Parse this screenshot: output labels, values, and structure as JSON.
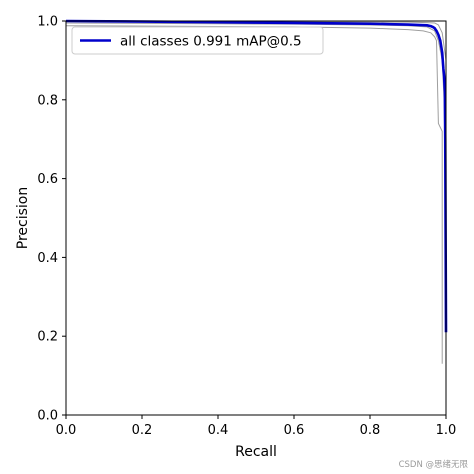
{
  "chart_data": {
    "type": "line",
    "title": "",
    "xlabel": "Recall",
    "ylabel": "Precision",
    "xlim": [
      0.0,
      1.0
    ],
    "ylim": [
      0.0,
      1.0
    ],
    "xticks": [
      "0.0",
      "0.2",
      "0.4",
      "0.6",
      "0.8",
      "1.0"
    ],
    "yticks": [
      "0.0",
      "0.2",
      "0.4",
      "0.6",
      "0.8",
      "1.0"
    ],
    "grid": false,
    "legend_position": "top-left",
    "series": [
      {
        "name": "all classes 0.991 mAP@0.5",
        "color": "#0000cc",
        "emphasis": true,
        "x": [
          0.0,
          0.4,
          0.5,
          0.6,
          0.7,
          0.8,
          0.85,
          0.9,
          0.95,
          0.96,
          0.965,
          0.97,
          0.975,
          0.98,
          0.985,
          0.99,
          0.993,
          0.995,
          0.997,
          0.998,
          0.999,
          1.0
        ],
        "y": [
          1.0,
          0.997,
          0.996,
          0.995,
          0.994,
          0.993,
          0.992,
          0.991,
          0.989,
          0.987,
          0.985,
          0.982,
          0.975,
          0.965,
          0.95,
          0.92,
          0.88,
          0.86,
          0.82,
          0.7,
          0.45,
          0.21
        ]
      },
      {
        "color": "#9e9e9e",
        "x": [
          0.0,
          0.4,
          0.6,
          0.8,
          0.9,
          0.95,
          0.97,
          0.98,
          0.99,
          0.995,
          1.0,
          1.0
        ],
        "y": [
          0.995,
          0.993,
          0.992,
          0.99,
          0.988,
          0.985,
          0.975,
          0.95,
          0.9,
          0.8,
          0.5,
          0.13
        ]
      },
      {
        "color": "#9e9e9e",
        "x": [
          0.0,
          0.4,
          0.6,
          0.8,
          0.85,
          0.9,
          0.94,
          0.96,
          0.97,
          0.975,
          0.98,
          0.985,
          0.99,
          0.99
        ],
        "y": [
          0.988,
          0.986,
          0.985,
          0.982,
          0.98,
          0.978,
          0.975,
          0.97,
          0.96,
          0.95,
          0.74,
          0.73,
          0.72,
          0.13
        ]
      },
      {
        "color": "#9e9e9e",
        "x": [
          0.0,
          0.4,
          0.6,
          0.8,
          0.9,
          0.95,
          0.97,
          0.98,
          0.99,
          1.0,
          1.0
        ],
        "y": [
          0.999,
          0.998,
          0.998,
          0.997,
          0.997,
          0.996,
          0.995,
          0.99,
          0.97,
          0.9,
          0.2
        ]
      }
    ]
  },
  "watermark": "CSDN @思绪无限"
}
